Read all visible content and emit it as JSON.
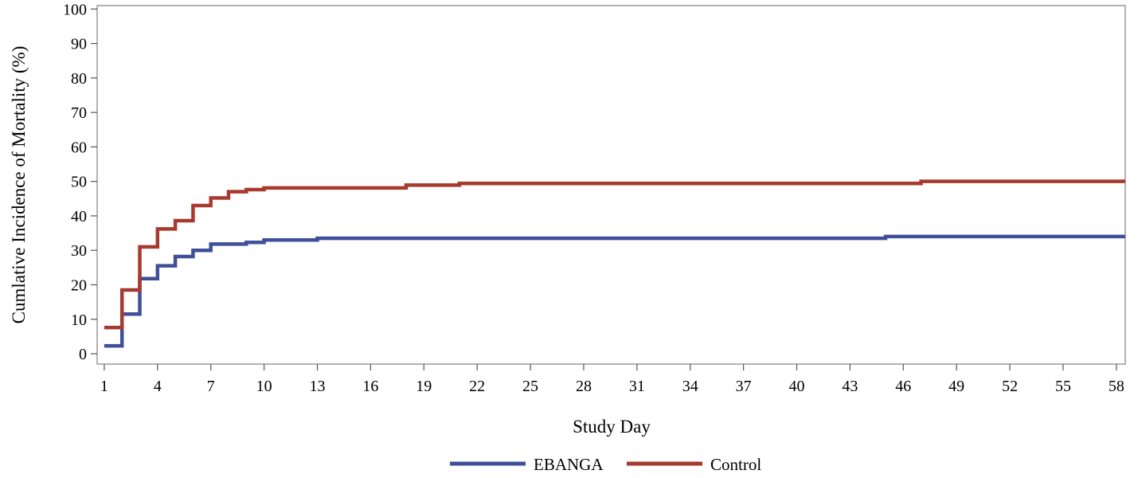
{
  "chart_data": {
    "type": "line",
    "step": true,
    "title": "",
    "xlabel": "Study Day",
    "ylabel": "Cumlative Incidence of Mortality (%)",
    "xlim": [
      0.6,
      58.5
    ],
    "ylim": [
      -3,
      101
    ],
    "xticks": [
      1,
      4,
      7,
      10,
      13,
      16,
      19,
      22,
      25,
      28,
      31,
      34,
      37,
      40,
      43,
      46,
      49,
      52,
      55,
      58
    ],
    "yticks": [
      0,
      10,
      20,
      30,
      40,
      50,
      60,
      70,
      80,
      90,
      100
    ],
    "grid": false,
    "legend_position": "bottom-center",
    "series": [
      {
        "name": "EBANGA",
        "color": "#3F4F9A",
        "x": [
          1,
          2,
          3,
          4,
          5,
          6,
          7,
          9,
          10,
          13,
          45,
          58.5
        ],
        "y": [
          2.3,
          11.5,
          21.8,
          25.5,
          28.2,
          30.0,
          31.8,
          32.3,
          33.0,
          33.5,
          34.0,
          34.0
        ]
      },
      {
        "name": "Control",
        "color": "#A63A2E",
        "x": [
          1,
          2,
          3,
          4,
          5,
          6,
          7,
          8,
          9,
          10,
          18,
          21,
          47,
          58.5
        ],
        "y": [
          7.6,
          18.5,
          31.0,
          36.2,
          38.6,
          43.0,
          45.2,
          47.0,
          47.6,
          48.1,
          48.9,
          49.4,
          50.0,
          50.0
        ]
      }
    ]
  }
}
